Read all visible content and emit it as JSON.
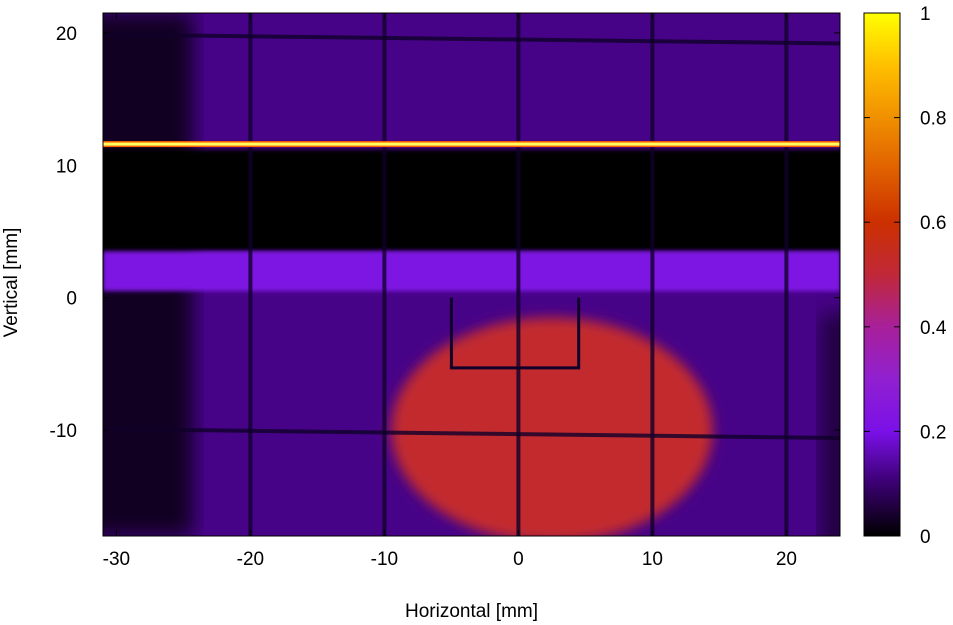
{
  "chart_data": {
    "type": "heatmap",
    "xlabel": "Horizontal [mm]",
    "ylabel": "Vertical [mm]",
    "xlim": [
      -31,
      24
    ],
    "ylim": [
      -18,
      21.5
    ],
    "x_ticks": [
      {
        "value": -30,
        "label": "-30"
      },
      {
        "value": -20,
        "label": "-20"
      },
      {
        "value": -10,
        "label": "-10"
      },
      {
        "value": 0,
        "label": "0"
      },
      {
        "value": 10,
        "label": "10"
      },
      {
        "value": 20,
        "label": "20"
      }
    ],
    "y_ticks": [
      {
        "value": 20,
        "label": "20"
      },
      {
        "value": 10,
        "label": "10"
      },
      {
        "value": 0,
        "label": "0"
      },
      {
        "value": -10,
        "label": "-10"
      }
    ],
    "colorbar": {
      "colormap": "gnuplot-hot",
      "range": [
        0,
        1
      ],
      "ticks": [
        {
          "value": 1,
          "label": "1"
        },
        {
          "value": 0.8,
          "label": "0.8"
        },
        {
          "value": 0.6,
          "label": "0.6"
        },
        {
          "value": 0.4,
          "label": "0.4"
        },
        {
          "value": 0.2,
          "label": "0.2"
        },
        {
          "value": 0,
          "label": "0"
        }
      ],
      "stops": [
        {
          "v": 0.0,
          "color": "#000000"
        },
        {
          "v": 0.1,
          "color": "#3a0070"
        },
        {
          "v": 0.2,
          "color": "#7a10e8"
        },
        {
          "v": 0.3,
          "color": "#9020d0"
        },
        {
          "v": 0.4,
          "color": "#a8209a"
        },
        {
          "v": 0.5,
          "color": "#c02838"
        },
        {
          "v": 0.6,
          "color": "#cc3000"
        },
        {
          "v": 0.7,
          "color": "#e06000"
        },
        {
          "v": 0.8,
          "color": "#f09000"
        },
        {
          "v": 0.9,
          "color": "#ffc000"
        },
        {
          "v": 1.0,
          "color": "#ffff00"
        }
      ]
    },
    "features": {
      "background_level": 0.12,
      "dark_band_mm": [
        3.5,
        11.2
      ],
      "bright_band_mm": [
        3.5,
        0.5
      ],
      "bright_band_level": 0.22,
      "hot_line_mm": 11.6,
      "spot": {
        "cx_mm": 2.5,
        "cy_mm": -10,
        "rx_mm": 12,
        "ry_mm": 8.5,
        "level": 0.52
      },
      "grid_x_mm": [
        -20,
        -10,
        0,
        10,
        20
      ],
      "grid_y_mm": [
        19.5,
        -10.3
      ]
    }
  }
}
